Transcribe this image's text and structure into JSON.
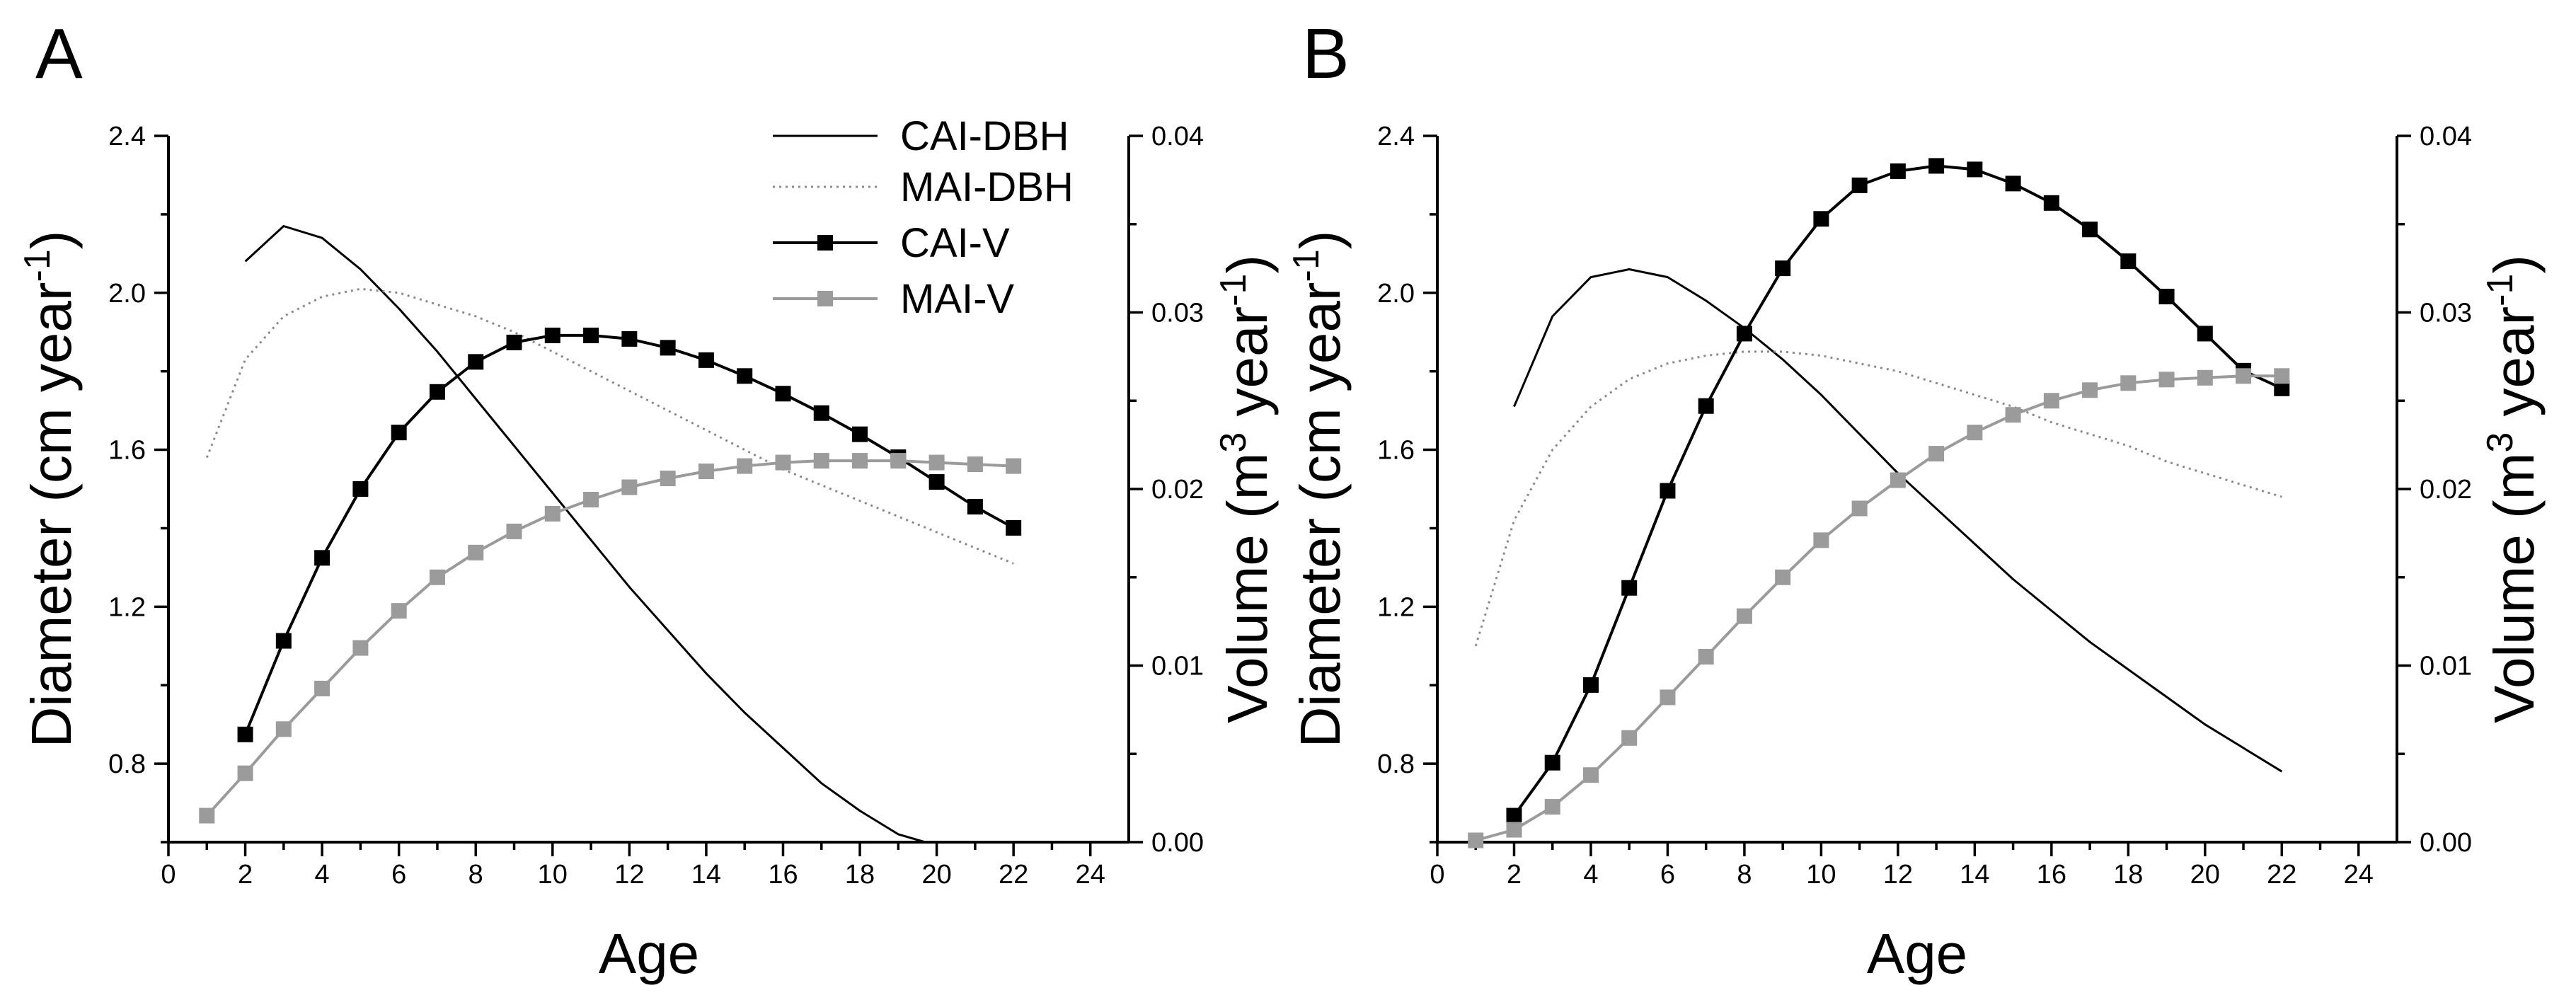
{
  "chart_data": [
    {
      "type": "line",
      "panel_label": "A",
      "xlabel": "Age",
      "ylabel_left": {
        "main": "Diameter (cm year",
        "sup": "-1",
        "tail": ")"
      },
      "ylabel_right": {
        "main": "Volume (m",
        "sup1": "3",
        "mid": " year",
        "sup2": "-1",
        "tail": ")"
      },
      "xlim": [
        0,
        25
      ],
      "ylim_left": [
        0.6,
        2.4
      ],
      "ylim_right": [
        0.0,
        0.04
      ],
      "xticks": [
        "0",
        "2",
        "4",
        "6",
        "8",
        "10",
        "12",
        "14",
        "16",
        "18",
        "20",
        "22",
        "24"
      ],
      "yticks_left": [
        "0.8",
        "1.2",
        "1.6",
        "2.0",
        "2.4"
      ],
      "yticks_right": [
        "0.00",
        "0.01",
        "0.02",
        "0.03",
        "0.04"
      ],
      "legend": [
        "CAI-DBH",
        "MAI-DBH",
        "CAI-V",
        "MAI-V"
      ],
      "legend_position": "top-right",
      "series": [
        {
          "name": "CAI-DBH",
          "axis": "left",
          "style": "solid-thin",
          "x": [
            2,
            3,
            4,
            5,
            6,
            7,
            8,
            9,
            10,
            11,
            12,
            13,
            14,
            15,
            16,
            17,
            18,
            19,
            19.7
          ],
          "values": [
            2.08,
            2.17,
            2.14,
            2.06,
            1.96,
            1.85,
            1.73,
            1.61,
            1.49,
            1.37,
            1.25,
            1.14,
            1.03,
            0.93,
            0.84,
            0.75,
            0.68,
            0.62,
            0.6
          ]
        },
        {
          "name": "MAI-DBH",
          "axis": "left",
          "style": "dotted",
          "x": [
            1,
            2,
            3,
            4,
            5,
            6,
            7,
            8,
            9,
            10,
            11,
            12,
            13,
            14,
            15,
            16,
            17,
            18,
            19,
            20,
            21,
            22
          ],
          "values": [
            1.58,
            1.83,
            1.94,
            1.99,
            2.01,
            2.0,
            1.97,
            1.94,
            1.9,
            1.85,
            1.8,
            1.75,
            1.7,
            1.65,
            1.6,
            1.55,
            1.51,
            1.47,
            1.43,
            1.39,
            1.35,
            1.31
          ]
        },
        {
          "name": "CAI-V",
          "axis": "right",
          "style": "black-squares",
          "x": [
            2,
            3,
            4,
            5,
            6,
            7,
            8,
            9,
            10,
            11,
            12,
            13,
            14,
            15,
            16,
            17,
            18,
            19,
            20,
            21,
            22
          ],
          "values": [
            0.0061,
            0.0114,
            0.0161,
            0.02,
            0.0232,
            0.0255,
            0.0272,
            0.0283,
            0.0287,
            0.0287,
            0.0285,
            0.028,
            0.0273,
            0.0264,
            0.0254,
            0.0243,
            0.0231,
            0.0218,
            0.0204,
            0.019,
            0.0178
          ]
        },
        {
          "name": "MAI-V",
          "axis": "right",
          "style": "grey-squares",
          "x": [
            1,
            2,
            3,
            4,
            5,
            6,
            7,
            8,
            9,
            10,
            11,
            12,
            13,
            14,
            15,
            16,
            17,
            18,
            19,
            20,
            21,
            22
          ],
          "values": [
            0.0015,
            0.0039,
            0.0064,
            0.0087,
            0.011,
            0.0131,
            0.015,
            0.0164,
            0.0176,
            0.0186,
            0.0194,
            0.0201,
            0.0206,
            0.021,
            0.0213,
            0.0215,
            0.0216,
            0.0216,
            0.0216,
            0.0215,
            0.0214,
            0.0213
          ]
        }
      ]
    },
    {
      "type": "line",
      "panel_label": "B",
      "xlabel": "Age",
      "ylabel_left": {
        "main": "Diameter (cm year",
        "sup": "-1",
        "tail": ")"
      },
      "ylabel_right": {
        "main": "Volume (m",
        "sup1": "3",
        "mid": " year",
        "sup2": "-1",
        "tail": ")"
      },
      "xlim": [
        0,
        25
      ],
      "ylim_left": [
        0.6,
        2.4
      ],
      "ylim_right": [
        0.0,
        0.04
      ],
      "xticks": [
        "0",
        "2",
        "4",
        "6",
        "8",
        "10",
        "12",
        "14",
        "16",
        "18",
        "20",
        "22",
        "24"
      ],
      "yticks_left": [
        "0.8",
        "1.2",
        "1.6",
        "2.0",
        "2.4"
      ],
      "yticks_right": [
        "0.00",
        "0.01",
        "0.02",
        "0.03",
        "0.04"
      ],
      "legend": [],
      "series": [
        {
          "name": "CAI-DBH",
          "axis": "left",
          "style": "solid-thin",
          "x": [
            2,
            3,
            4,
            5,
            6,
            7,
            8,
            9,
            10,
            11,
            12,
            13,
            14,
            15,
            16,
            17,
            18,
            19,
            20,
            21,
            22
          ],
          "values": [
            1.71,
            1.94,
            2.04,
            2.06,
            2.04,
            1.98,
            1.91,
            1.83,
            1.74,
            1.64,
            1.54,
            1.45,
            1.36,
            1.27,
            1.19,
            1.11,
            1.04,
            0.97,
            0.9,
            0.84,
            0.78
          ]
        },
        {
          "name": "MAI-DBH",
          "axis": "left",
          "style": "dotted",
          "x": [
            1,
            2,
            3,
            4,
            5,
            6,
            7,
            8,
            9,
            10,
            11,
            12,
            13,
            14,
            15,
            16,
            17,
            18,
            19,
            20,
            21,
            22
          ],
          "values": [
            1.1,
            1.42,
            1.6,
            1.71,
            1.78,
            1.82,
            1.84,
            1.85,
            1.85,
            1.84,
            1.82,
            1.8,
            1.77,
            1.74,
            1.71,
            1.67,
            1.64,
            1.61,
            1.57,
            1.54,
            1.51,
            1.48
          ]
        },
        {
          "name": "CAI-V",
          "axis": "right",
          "style": "black-squares",
          "x": [
            2,
            3,
            4,
            5,
            6,
            7,
            8,
            9,
            10,
            11,
            12,
            13,
            14,
            15,
            16,
            17,
            18,
            19,
            20,
            21,
            22
          ],
          "values": [
            0.0015,
            0.0045,
            0.0089,
            0.0144,
            0.0199,
            0.0247,
            0.0288,
            0.0325,
            0.0353,
            0.0372,
            0.038,
            0.0383,
            0.0381,
            0.0373,
            0.0362,
            0.0347,
            0.0329,
            0.0309,
            0.0288,
            0.0267,
            0.0257
          ]
        },
        {
          "name": "MAI-V",
          "axis": "right",
          "style": "grey-squares",
          "x": [
            1,
            2,
            3,
            4,
            5,
            6,
            7,
            8,
            9,
            10,
            11,
            12,
            13,
            14,
            15,
            16,
            17,
            18,
            19,
            20,
            21,
            22
          ],
          "values": [
            0.0001,
            0.0007,
            0.002,
            0.0038,
            0.0059,
            0.0082,
            0.0105,
            0.0128,
            0.015,
            0.0171,
            0.0189,
            0.0205,
            0.022,
            0.0232,
            0.0242,
            0.025,
            0.0256,
            0.026,
            0.0262,
            0.0263,
            0.0264,
            0.0264
          ]
        }
      ]
    }
  ]
}
